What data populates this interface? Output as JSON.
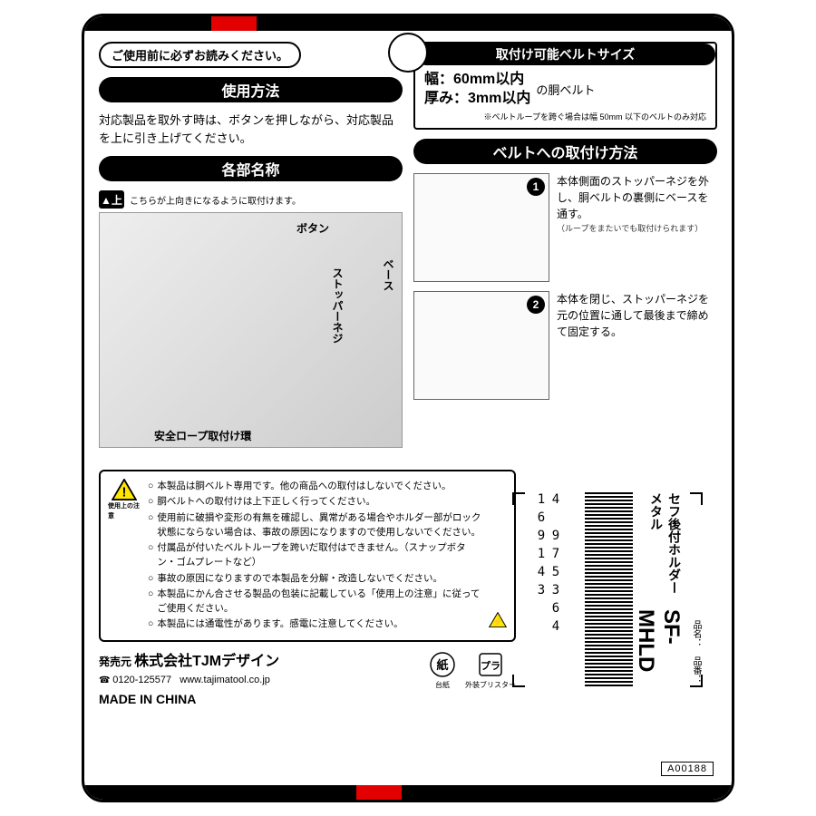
{
  "header": {
    "read_first": "ご使用前に必ずお読みください。"
  },
  "usage": {
    "title": "使用方法",
    "text": "対応製品を取外す時は、ボタンを押しながら、対応製品を上に引き上げてください。"
  },
  "spec": {
    "title": "取付け可能ベルトサイズ",
    "width_label": "幅：",
    "width_value": "60mm以内",
    "thick_label": "厚み：",
    "thick_value": "3mm以内",
    "suffix": "の胴ベルト",
    "note": "※ベルトループを跨ぐ場合は幅 50mm 以下のベルトのみ対応"
  },
  "parts": {
    "title": "各部名称",
    "up_text": "こちらが上向きになるように取付けます。",
    "labels": {
      "button": "ボタン",
      "stopper": "ストッパーネジ",
      "base": "ベース",
      "ring": "安全ロープ取付け環"
    }
  },
  "mount": {
    "title": "ベルトへの取付け方法",
    "step1": "本体側面のストッパーネジを外し、胴ベルトの裏側にベースを通す。",
    "step1_note": "（ループをまたいでも取付けられます）",
    "step2": "本体を閉じ、ストッパーネジを元の位置に通して最後まで締めて固定する。"
  },
  "warnings": {
    "caption": "使用上の注意",
    "items": [
      "本製品は胴ベルト専用です。他の商品への取付はしないでください。",
      "胴ベルトへの取付けは上下正しく行ってください。",
      "使用前に破損や変形の有無を確認し、異常がある場合やホルダー部がロック状態にならない場合は、事故の原因になりますので使用しないでください。",
      "付属品が付いたベルトループを跨いだ取付はできません。（スナップボタン・ゴムプレートなど）",
      "事故の原因になりますので本製品を分解・改造しないでください。",
      "本製品にかん合させる製品の包装に記載している「使用上の注意」に従ってご使用ください。",
      "本製品には通電性があります。感電に注意してください。"
    ]
  },
  "seller": {
    "label": "発売元",
    "company": "株式会社TJMデザイン",
    "tel": "0120-125577",
    "url": "www.tajimatool.co.jp",
    "made": "MADE IN CHINA"
  },
  "recycling": {
    "paper": "紙",
    "paper_sub": "台紙",
    "plastic": "プラ",
    "plastic_sub": "外装ブリスター"
  },
  "barcode": {
    "number": "4 975364 169143"
  },
  "product": {
    "name_label": "品名：",
    "name": "セフ後付ホルダー メタル",
    "code_label": "品番：",
    "code": "SF-MHLD"
  },
  "anum": "A00188"
}
